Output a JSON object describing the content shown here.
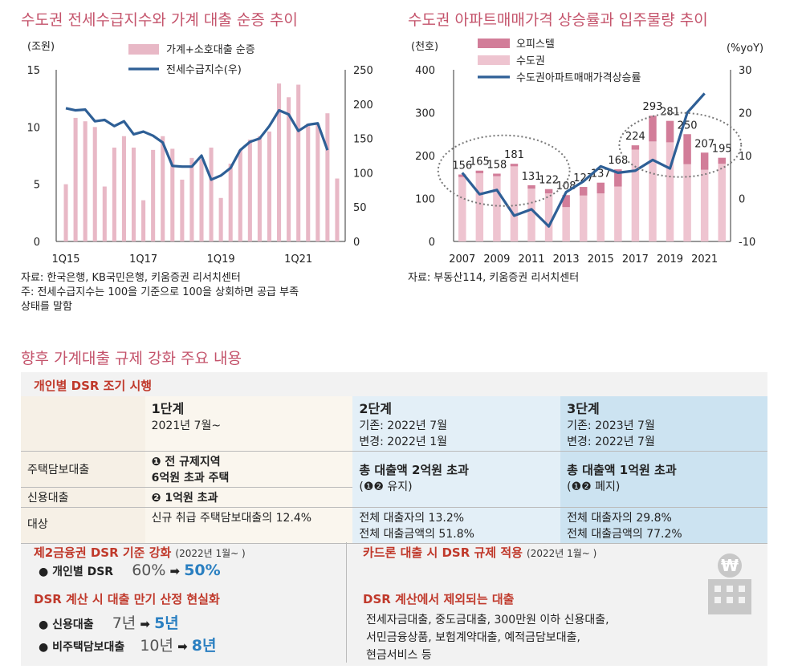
{
  "chart_data": [
    {
      "type": "bar+line",
      "title": "수도권 전세수급지수와 가계 대출 순증 추이",
      "ylabel_left": "(조원)",
      "ylim_left": [
        0,
        15
      ],
      "yticks_left": [
        "15",
        "10",
        "5",
        "0"
      ],
      "ylim_right": [
        0,
        250
      ],
      "yticks_right": [
        "250",
        "200",
        "150",
        "100",
        "50",
        "0"
      ],
      "xticks": [
        "1Q15",
        "1Q17",
        "1Q19",
        "1Q21"
      ],
      "legend": [
        "가계+소호대출 순증",
        "전세수급지수(우)"
      ],
      "bar_color": "#e8b8c6",
      "line_color": "#2e5f96",
      "bars": [
        5.0,
        10.8,
        10.5,
        10.0,
        4.8,
        8.2,
        9.2,
        8.2,
        3.6,
        8.0,
        9.2,
        8.1,
        5.4,
        7.3,
        7.2,
        8.2,
        3.8,
        6.8,
        8.0,
        8.9,
        9.2,
        9.6,
        13.8,
        12.6,
        13.7,
        10.3,
        10.2,
        11.2,
        5.5
      ],
      "line": [
        194,
        191,
        192,
        175,
        177,
        168,
        175,
        156,
        160,
        154,
        144,
        110,
        109,
        109,
        125,
        90,
        96,
        107,
        133,
        145,
        150,
        168,
        191,
        185,
        161,
        170,
        172,
        133
      ],
      "notes": [
        "자료: 한국은행, KB국민은행, 키움증권 리서치센터",
        "주: 전세수급지수는 100을 기준으로 100을 상회하면 공급 부족",
        "상태를 말함"
      ]
    },
    {
      "type": "stacked-bar+line",
      "title": "수도권 아파트매매가격 상승률과 입주물량 추이",
      "ylabel_left": "(천호)",
      "ylabel_right": "(%yoY)",
      "ylim_left": [
        0,
        400
      ],
      "yticks_left": [
        "400",
        "300",
        "200",
        "100",
        "0"
      ],
      "ylim_right": [
        -10,
        30
      ],
      "yticks_right": [
        "30",
        "20",
        "10",
        "0",
        "-10"
      ],
      "years": [
        2007,
        2008,
        2009,
        2010,
        2011,
        2012,
        2013,
        2014,
        2015,
        2016,
        2017,
        2018,
        2019,
        2020,
        2021,
        2022
      ],
      "xticks": [
        "2007",
        "2009",
        "2011",
        "2013",
        "2015",
        "2017",
        "2019",
        "2021"
      ],
      "totals": [
        156,
        165,
        158,
        181,
        131,
        122,
        108,
        127,
        137,
        168,
        224,
        293,
        281,
        250,
        207,
        195
      ],
      "office": [
        6,
        6,
        6,
        6,
        8,
        10,
        28,
        20,
        25,
        40,
        10,
        60,
        50,
        70,
        40,
        14
      ],
      "growth": [
        6,
        1,
        2,
        -4,
        -2.5,
        -6.5,
        1.5,
        4,
        7.5,
        6,
        6.5,
        9,
        7,
        20,
        24.5
      ],
      "legend": [
        "오피스텔",
        "수도권",
        "수도권아파트매매가격상승률"
      ],
      "office_color": "#d27d99",
      "metro_color": "#eec4d0",
      "line_color": "#2e5f96",
      "notes": [
        "자료: 부동산114, 키움증권 리서치센터"
      ]
    }
  ],
  "section_title": "향후 가계대출 규제 강화 주요 내용",
  "box": {
    "title": "개인별 DSR 조기 시행",
    "stages": [
      {
        "head": "1단계",
        "sub1": "2021년 7월~",
        "sub2": ""
      },
      {
        "head": "2단계",
        "sub1": "기존: 2022년 7월",
        "sub2": "변경: 2022년 1월"
      },
      {
        "head": "3단계",
        "sub1": "기존: 2023년 7월",
        "sub2": "변경: 2022년 7월"
      }
    ],
    "rows": {
      "mortgage_label": "주택담보대출",
      "credit_label": "신용대출",
      "target_label": "대상",
      "s1_mortgage_a": "❶ 전 규제지역",
      "s1_mortgage_b": "6억원 초과 주택",
      "s1_credit": "❷ 1억원 초과",
      "s1_target": "신규 취급 주택담보대출의 12.4%",
      "s2_main": "총 대출액 2억원 초과",
      "s2_sub": "(❶❷ 유지)",
      "s2_target_a": "전체 대출자의 13.2%",
      "s2_target_b": "전체 대출금액의 51.8%",
      "s3_main": "총 대출액 1억원 초과",
      "s3_sub": "(❶❷ 폐지)",
      "s3_target_a": "전체 대출자의 29.8%",
      "s3_target_b": "전체 대출금액의 77.2%"
    },
    "left1_title": "제2금융권 DSR 기준 강화",
    "left1_date": "(2022년 1월~ )",
    "left1_item": "● 개인별 DSR",
    "left1_from": "60%",
    "left1_to": "50%",
    "left2_title": "DSR 계산 시 대출 만기 산정 현실화",
    "left2_item1": "● 신용대출",
    "left2_from1": "7년",
    "left2_to1": "5년",
    "left2_item2": "● 비주택담보대출",
    "left2_from2": "10년",
    "left2_to2": "8년",
    "right1_title": "카드론 대출 시 DSR 규제 적용",
    "right1_date": "(2022년 1월~ )",
    "right2_title": "DSR 계산에서 제외되는 대출",
    "right2_line1": "전세자금대출, 중도금대출, 300만원 이하 신용대출,",
    "right2_line2": "서민금융상품, 보험계약대출, 예적금담보대출,",
    "right2_line3": "현금서비스 등",
    "arrow": "➡",
    "won_symbol": "₩"
  }
}
